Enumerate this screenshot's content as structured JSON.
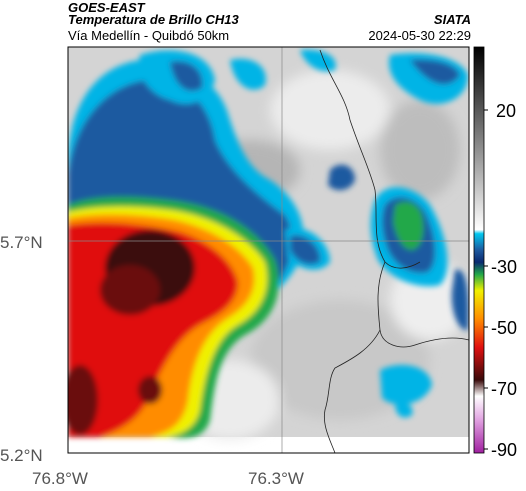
{
  "header": {
    "source": "GOES-EAST",
    "product": "Temperatura de Brillo CH13",
    "organization": "SIATA",
    "region": "Vía Medellín - Quibdó 50km",
    "timestamp": "2024-05-30 22:29"
  },
  "map": {
    "latitude_labels": [
      "5.7°N",
      "5.2°N"
    ],
    "longitude_labels": [
      "76.8°W",
      "76.3°W"
    ],
    "gridlines": [
      "76.3°W",
      "5.7°N"
    ]
  },
  "colorbar": {
    "tick_labels": [
      "20",
      "-30",
      "-50",
      "-70",
      "-90"
    ],
    "colors": {
      "warm": "#d9d9d9",
      "cyan": "#00b4e6",
      "blue": "#1e5aa0",
      "green": "#22a84a",
      "yellow": "#f0f000",
      "orange": "#ff8c00",
      "red": "#e01010",
      "dark": "#3a0a0a",
      "magenta": "#c060c0"
    }
  }
}
